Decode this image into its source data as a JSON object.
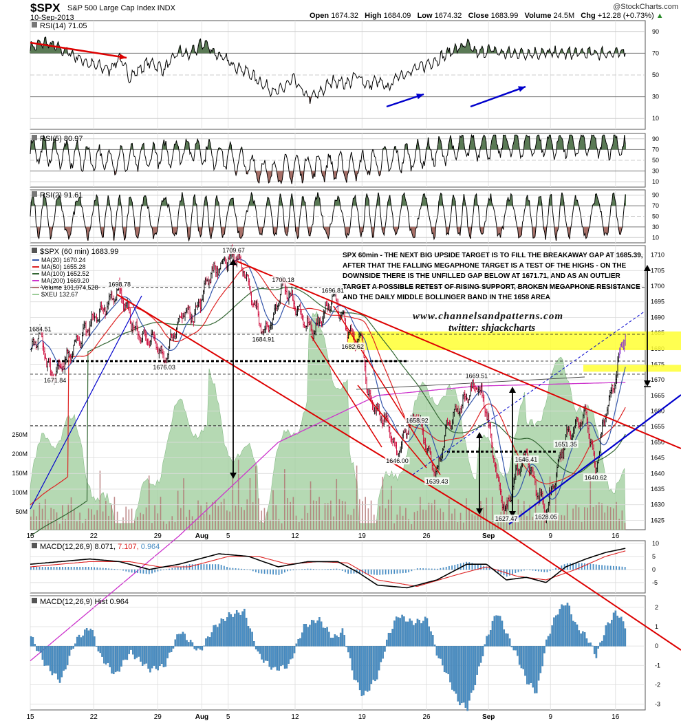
{
  "header": {
    "ticker": "$SPX",
    "title": "S&P 500 Large Cap Index INDX",
    "date": "10-Sep-2013",
    "brand": "@StockCharts.com",
    "open_label": "Open",
    "open": "1674.32",
    "high_label": "High",
    "high": "1684.09",
    "low_label": "Low",
    "low": "1674.32",
    "close_label": "Close",
    "close": "1683.99",
    "volume_label": "Volume",
    "volume": "24.5M",
    "chg_label": "Chg",
    "chg": "+12.28 (+0.73%)",
    "chg_arrow": "▲"
  },
  "annotation": "SPX 60min - THE NEXT BIG UPSIDE TARGET IS TO FILL THE BREAKAWAY GAP AT 1685.39, AFTER THAT THE FALLING MEGAPHONE TARGET IS A TEST OF THE HIGHS - ON THE DOWNSIDE THERE IS THE UNFILLED GAP BELOW AT 1671.71, AND AS AN OUTLIER TARGET A POSSIBLE RETEST OF RISING SUPPORT, BROKEN MEGAPHONE RESISTANCE AND THE DAILY MIDDLE BOLLINGER BAND IN THE 1658 AREA",
  "watermark": {
    "line1": "www.channelsandpatterns.com",
    "line2": "twitter: shjackcharts"
  },
  "colors": {
    "price_up": "#000000",
    "price_down": "#cc0033",
    "last_bars": "#8833cc",
    "ma20": "#3355aa",
    "ma50": "#dd2222",
    "ma100": "#336633",
    "ma200": "#cc33cc",
    "xeu_fill": "#9ccc99",
    "volume": "#b07070",
    "rsi_over": "#5a7a55",
    "rsi_under": "#a87068",
    "macd_hist": "#4a8ec4",
    "highlight": "#ffff33",
    "trend_red": "#dd0000",
    "trend_blue": "#0000cc"
  },
  "chart_data": [
    {
      "type": "line",
      "panel": "rsi14",
      "label": "RSI(14) 71.05",
      "y_ticks": [
        90,
        70,
        50,
        30,
        10
      ],
      "ylim": [
        0,
        100
      ],
      "overbought": 70,
      "oversold": 30,
      "anchors": [
        [
          0,
          75
        ],
        [
          3,
          80
        ],
        [
          8,
          70
        ],
        [
          12,
          60
        ],
        [
          16,
          55
        ],
        [
          18,
          66
        ],
        [
          20,
          48
        ],
        [
          24,
          62
        ],
        [
          27,
          55
        ],
        [
          30,
          72
        ],
        [
          32,
          68
        ],
        [
          35,
          80
        ],
        [
          37,
          71
        ],
        [
          40,
          62
        ],
        [
          44,
          52
        ],
        [
          48,
          38
        ],
        [
          50,
          34
        ],
        [
          53,
          46
        ],
        [
          56,
          29
        ],
        [
          58,
          32
        ],
        [
          61,
          45
        ],
        [
          64,
          42
        ],
        [
          66,
          50
        ],
        [
          68,
          40
        ],
        [
          70,
          45
        ],
        [
          72,
          37
        ],
        [
          74,
          49
        ],
        [
          76,
          52
        ],
        [
          79,
          58
        ],
        [
          82,
          64
        ],
        [
          85,
          72
        ],
        [
          88,
          78
        ],
        [
          90,
          70
        ],
        [
          93,
          73
        ],
        [
          95,
          70
        ]
      ]
    },
    {
      "type": "line",
      "panel": "rsi5",
      "label": "RSI(5) 80.97",
      "y_ticks": [
        90,
        70,
        50,
        30,
        10
      ],
      "ylim": [
        0,
        100
      ],
      "overbought": 70,
      "oversold": 30,
      "anchors": [
        [
          0,
          70
        ],
        [
          8,
          60
        ],
        [
          16,
          50
        ],
        [
          24,
          56
        ],
        [
          32,
          72
        ],
        [
          40,
          56
        ],
        [
          48,
          26
        ],
        [
          56,
          40
        ],
        [
          64,
          36
        ],
        [
          72,
          50
        ],
        [
          80,
          62
        ],
        [
          88,
          76
        ],
        [
          95,
          80
        ]
      ]
    },
    {
      "type": "line",
      "panel": "rsi2",
      "label": "RSI(2) 91.61",
      "y_ticks": [
        90,
        70,
        50,
        30,
        10
      ],
      "ylim": [
        0,
        100
      ],
      "overbought": 70,
      "oversold": 30,
      "anchors": [
        [
          0,
          70
        ],
        [
          95,
          91.61
        ]
      ]
    },
    {
      "type": "line",
      "panel": "price",
      "title": "$SPX (60 min) 1683.99",
      "ylim": [
        1622,
        1713
      ],
      "y_ticks": [
        1710,
        1705,
        1700,
        1695,
        1690,
        1685,
        1680,
        1675,
        1670,
        1665,
        1660,
        1655,
        1650,
        1645,
        1640,
        1635,
        1630,
        1625
      ],
      "x_labels": [
        {
          "t": 0,
          "label": "15"
        },
        {
          "t": 12.8,
          "label": "22"
        },
        {
          "t": 25.7,
          "label": "29"
        },
        {
          "t": 34.6,
          "label": "Aug"
        },
        {
          "t": 39.9,
          "label": "5"
        },
        {
          "t": 53.4,
          "label": "12"
        },
        {
          "t": 66.9,
          "label": "19"
        },
        {
          "t": 79.9,
          "label": "26"
        },
        {
          "t": 92.4,
          "label": "Sep"
        },
        {
          "t": 104.9,
          "label": "9"
        },
        {
          "t": 118,
          "label": "16"
        }
      ],
      "legend": [
        {
          "label": "MA(20) 1670.24",
          "color": "#3355aa"
        },
        {
          "label": "MA(50) 1655.28",
          "color": "#dd2222"
        },
        {
          "label": "MA(100) 1652.52",
          "color": "#336633"
        },
        {
          "label": "MA(200) 1669.20",
          "color": "#cc33cc"
        },
        {
          "label": "Volume 101,974,528",
          "color": "#b07070"
        },
        {
          "label": "$XEU 132.67",
          "color": "#9ccc99"
        }
      ],
      "close_anchors": [
        [
          0,
          1679
        ],
        [
          2,
          1684.51
        ],
        [
          4,
          1672
        ],
        [
          5,
          1671.84
        ],
        [
          7,
          1676
        ],
        [
          10,
          1683
        ],
        [
          13,
          1690
        ],
        [
          16,
          1695
        ],
        [
          18,
          1698.78
        ],
        [
          20,
          1690
        ],
        [
          22,
          1684
        ],
        [
          25,
          1683
        ],
        [
          27,
          1676.03
        ],
        [
          29,
          1685
        ],
        [
          31,
          1692
        ],
        [
          33,
          1690
        ],
        [
          36,
          1703
        ],
        [
          39,
          1708
        ],
        [
          41,
          1709.67
        ],
        [
          43,
          1706
        ],
        [
          45,
          1695
        ],
        [
          47,
          1684.91
        ],
        [
          49,
          1690
        ],
        [
          51,
          1700.18
        ],
        [
          53,
          1695
        ],
        [
          55,
          1690
        ],
        [
          57,
          1685
        ],
        [
          59,
          1690
        ],
        [
          61,
          1696.81
        ],
        [
          63,
          1690
        ],
        [
          65,
          1682.62
        ],
        [
          67,
          1684
        ],
        [
          68,
          1665
        ],
        [
          70,
          1660
        ],
        [
          72,
          1656
        ],
        [
          74,
          1646
        ],
        [
          76,
          1655
        ],
        [
          78,
          1658.92
        ],
        [
          80,
          1648
        ],
        [
          82,
          1639.43
        ],
        [
          84,
          1655
        ],
        [
          86,
          1660
        ],
        [
          88,
          1665
        ],
        [
          90,
          1669.51
        ],
        [
          92,
          1660
        ],
        [
          94,
          1640
        ],
        [
          95,
          1632
        ],
        [
          96,
          1627.47
        ],
        [
          98,
          1640
        ],
        [
          100,
          1646.41
        ],
        [
          102,
          1635
        ],
        [
          104,
          1628.05
        ],
        [
          106,
          1640
        ],
        [
          108,
          1651.35
        ],
        [
          110,
          1655
        ],
        [
          112,
          1660
        ],
        [
          114,
          1640.62
        ],
        [
          116,
          1660
        ],
        [
          118,
          1670
        ],
        [
          119,
          1681
        ],
        [
          120,
          1683.99
        ]
      ],
      "price_labels": [
        {
          "t": 2,
          "v": 1684.51,
          "label": "1684.51"
        },
        {
          "t": 18,
          "v": 1698.78,
          "label": "1698.78"
        },
        {
          "t": 5,
          "v": 1671.84,
          "label": "1671.84"
        },
        {
          "t": 27,
          "v": 1676.03,
          "label": "1676.03"
        },
        {
          "t": 41,
          "v": 1709.67,
          "label": "1709.67"
        },
        {
          "t": 51,
          "v": 1700.18,
          "label": "1700.18"
        },
        {
          "t": 47,
          "v": 1684.91,
          "label": "1684.91"
        },
        {
          "t": 61,
          "v": 1696.81,
          "label": "1696.81"
        },
        {
          "t": 65,
          "v": 1682.62,
          "label": "1682.62"
        },
        {
          "t": 78,
          "v": 1658.92,
          "label": "1658.92"
        },
        {
          "t": 74,
          "v": 1646.0,
          "label": "1646.00"
        },
        {
          "t": 82,
          "v": 1639.43,
          "label": "1639.43"
        },
        {
          "t": 90,
          "v": 1669.51,
          "label": "1669.51"
        },
        {
          "t": 100,
          "v": 1646.41,
          "label": "1646.41"
        },
        {
          "t": 108,
          "v": 1651.35,
          "label": "1651.35"
        },
        {
          "t": 96,
          "v": 1627.47,
          "label": "1627.47"
        },
        {
          "t": 104,
          "v": 1628.05,
          "label": "1628.05"
        },
        {
          "t": 114,
          "v": 1640.62,
          "label": "1640.62"
        }
      ],
      "volume_ticks": [
        {
          "label": "250M"
        },
        {
          "label": "200M"
        },
        {
          "label": "150M"
        },
        {
          "label": "100M"
        },
        {
          "label": "50M"
        }
      ]
    },
    {
      "type": "line",
      "panel": "macd",
      "label": "MACD(12,26,9) 8.071, 7.107, 0.964",
      "label_parts": {
        "name": "MACD(12,26,9)",
        "macd": "8.071",
        "signal": "7.107",
        "hist": "0.964"
      },
      "y_ticks": [
        "10",
        "5",
        "0",
        "-5"
      ],
      "ylim": [
        -9,
        11
      ]
    },
    {
      "type": "bar",
      "panel": "macd_hist",
      "label": "MACD(12,26,9) Hist 0.964",
      "y_ticks": [
        "2",
        "1",
        "0",
        "-1",
        "-2",
        "-3"
      ],
      "ylim": [
        -3.3,
        2.6
      ]
    }
  ]
}
